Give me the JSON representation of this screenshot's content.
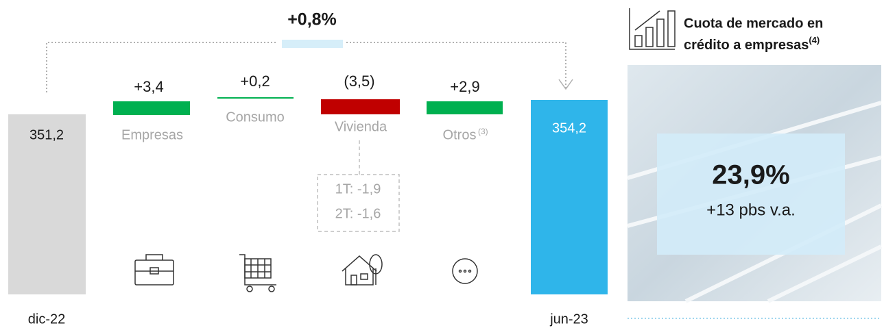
{
  "total_change": "+0,8%",
  "start": {
    "label": "dic-22",
    "value": "351,2"
  },
  "end": {
    "label": "jun-23",
    "value": "354,2"
  },
  "segments": [
    {
      "name": "Empresas",
      "value": "+3,4"
    },
    {
      "name": "Consumo",
      "value": "+0,2"
    },
    {
      "name": "Vivienda",
      "value": "(3,5)"
    },
    {
      "name": "Otros",
      "sup": "(3)",
      "value": "+2,9"
    }
  ],
  "vivienda_detail": [
    "1T: -1,9",
    "2T: -1,6"
  ],
  "panel": {
    "title_lines": [
      "Cuota de mercado en",
      "crédito a empresas"
    ],
    "title_sup": "(4)",
    "value": "23,9%",
    "change": "+13 pbs v.a."
  }
}
